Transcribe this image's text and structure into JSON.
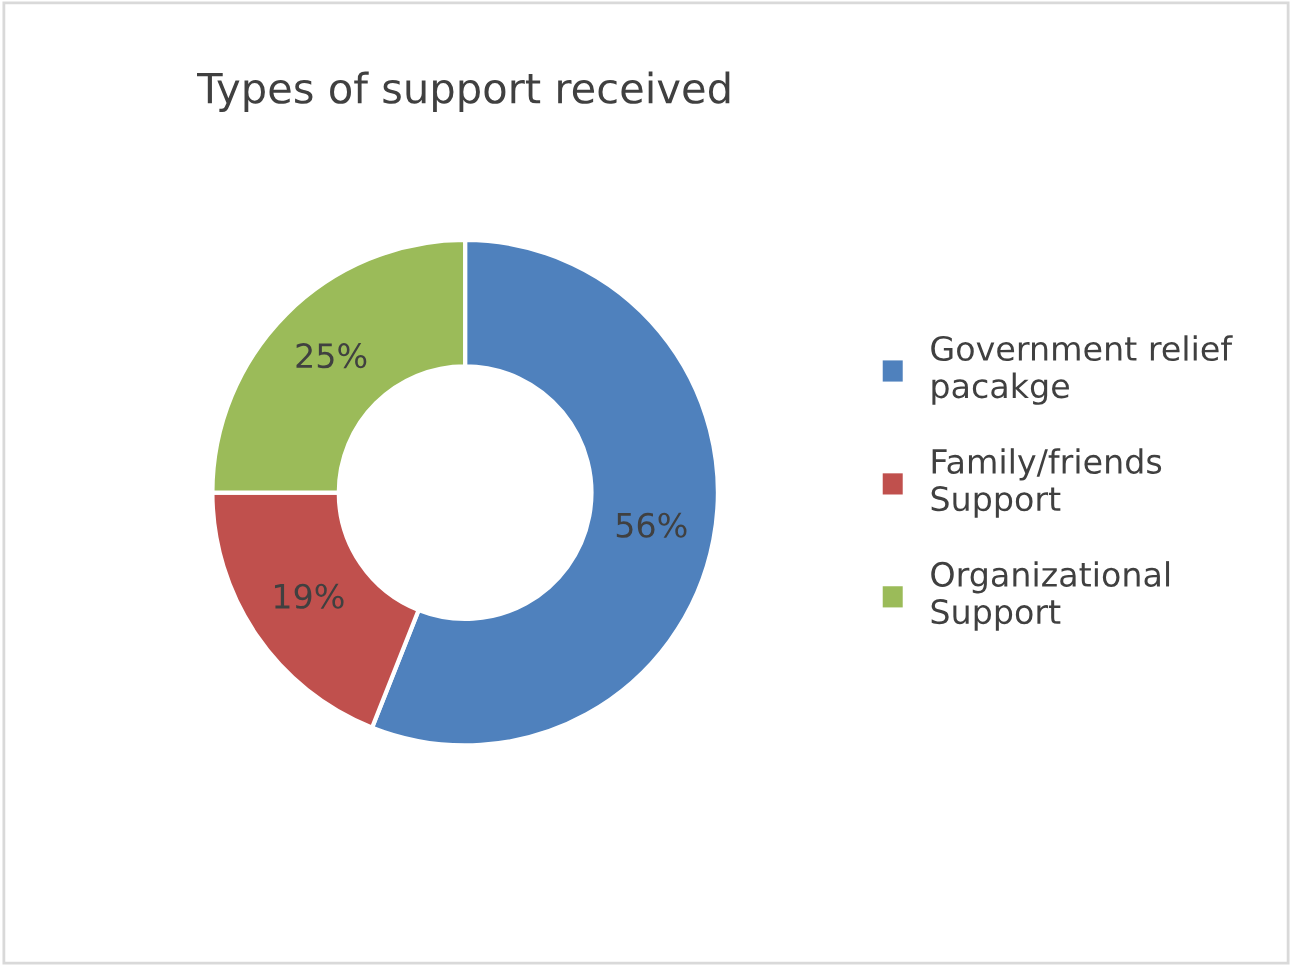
{
  "chart_data": {
    "type": "donut",
    "title": "Types of support received",
    "categories": [
      "Government relief pacakge",
      "Family/friends Support",
      "Organizational Support"
    ],
    "values": [
      56,
      19,
      25
    ],
    "colors": [
      "#4f81bd",
      "#c0504d",
      "#9bbb59"
    ],
    "value_labels": [
      "56%",
      "19%",
      "25%"
    ],
    "legend": "right"
  }
}
